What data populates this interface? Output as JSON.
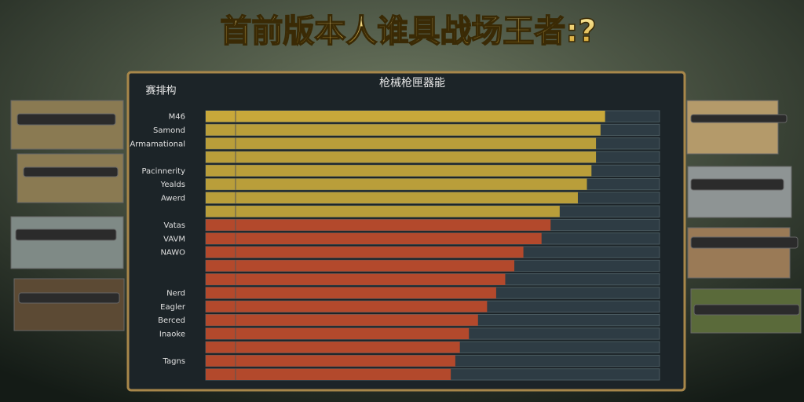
{
  "header": {
    "title": "首前版本人谁具战场王者:?",
    "panel_title": "枪械枪匣器能",
    "corner_label": "赛排构"
  },
  "rows": [
    {
      "label": "M46",
      "value": 88,
      "color": "#d9b43a"
    },
    {
      "label": "Samond",
      "value": 87,
      "color": "#c9a83a"
    },
    {
      "label": "Armamational",
      "value": 86,
      "color": "#c9a83a"
    },
    {
      "value": 86,
      "color": "#c9a83a"
    },
    {
      "label": "Pacinnerity",
      "value": 85,
      "color": "#c9a83a"
    },
    {
      "label": "Yealds",
      "value": 84,
      "color": "#c9a83a"
    },
    {
      "label": "Awerd",
      "value": 82,
      "color": "#c9a83a"
    },
    {
      "value": 78,
      "color": "#c9a83a"
    },
    {
      "label": "Vatas",
      "value": 76,
      "color": "#c24a2a"
    },
    {
      "label": "VAVM",
      "value": 74,
      "color": "#c24a2a"
    },
    {
      "label": "NAWO",
      "value": 70,
      "color": "#c24a2a"
    },
    {
      "value": 68,
      "color": "#c24a2a"
    },
    {
      "value": 66,
      "color": "#c24a2a"
    },
    {
      "label": "Nerd",
      "value": 64,
      "color": "#c24a2a"
    },
    {
      "label": "Eagler",
      "value": 62,
      "color": "#c24a2a"
    },
    {
      "label": "Berced",
      "value": 60,
      "color": "#c24a2a"
    },
    {
      "label": "Inaoke",
      "value": 58,
      "color": "#c24a2a"
    },
    {
      "value": 56,
      "color": "#c24a2a"
    },
    {
      "label": "Tagns",
      "value": 55,
      "color": "#c24a2a"
    },
    {
      "value": 54,
      "color": "#c24a2a"
    }
  ]
}
